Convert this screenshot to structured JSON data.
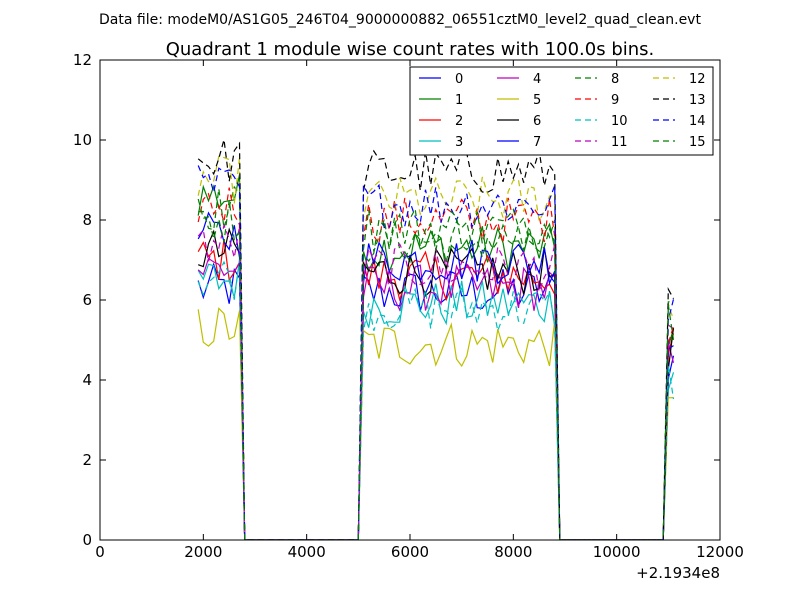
{
  "header": {
    "data_file": "Data file: modeM0/AS1G05_246T04_9000000882_06551cztM0_level2_quad_clean.evt",
    "title": "Quadrant 1 module wise count rates with 100.0s bins."
  },
  "axes": {
    "x_offset_label": "+2.1934e8",
    "x_ticks": [
      {
        "value": 0,
        "label": "0"
      },
      {
        "value": 2000,
        "label": "2000"
      },
      {
        "value": 4000,
        "label": "4000"
      },
      {
        "value": 6000,
        "label": "6000"
      },
      {
        "value": 8000,
        "label": "8000"
      },
      {
        "value": 10000,
        "label": "10000"
      },
      {
        "value": 12000,
        "label": "12000"
      }
    ],
    "y_ticks": [
      {
        "value": 0,
        "label": "0"
      },
      {
        "value": 2,
        "label": "2"
      },
      {
        "value": 4,
        "label": "4"
      },
      {
        "value": 6,
        "label": "6"
      },
      {
        "value": 8,
        "label": "8"
      },
      {
        "value": 10,
        "label": "10"
      },
      {
        "value": 12,
        "label": "12"
      }
    ]
  },
  "chart_data": {
    "type": "line",
    "title": "Quadrant 1 module wise count rates with 100.0s bins.",
    "xlabel": "",
    "ylabel": "",
    "x_offset": "+2.1934e8",
    "xlim": [
      0,
      12000
    ],
    "ylim": [
      0,
      12
    ],
    "grid": false,
    "legend_position": "top-right",
    "legend_columns": 4,
    "segments": [
      {
        "x_start": 1900,
        "x_end": 2700,
        "step": 100
      },
      {
        "x_start": 2800,
        "x_end": 5000,
        "step": 100
      },
      {
        "x_start": 5100,
        "x_end": 8800,
        "step": 100
      },
      {
        "x_start": 8900,
        "x_end": 10900,
        "step": 100
      },
      {
        "x_start": 11000,
        "x_end": 11100,
        "step": 100
      }
    ],
    "series": [
      {
        "name": "0",
        "color": "#0000ff",
        "dash": "solid",
        "levels": [
          6.3,
          0,
          6.2,
          0,
          4.5
        ]
      },
      {
        "name": "1",
        "color": "#008000",
        "dash": "solid",
        "levels": [
          8.6,
          0,
          7.3,
          0,
          5.2
        ]
      },
      {
        "name": "2",
        "color": "#ff0000",
        "dash": "solid",
        "levels": [
          7.0,
          0,
          6.6,
          0,
          4.6
        ]
      },
      {
        "name": "3",
        "color": "#00bfbf",
        "dash": "solid",
        "levels": [
          6.5,
          0,
          5.9,
          0,
          4.2
        ]
      },
      {
        "name": "4",
        "color": "#bf00bf",
        "dash": "solid",
        "levels": [
          6.8,
          0,
          6.3,
          0,
          4.4
        ]
      },
      {
        "name": "5",
        "color": "#bfbf00",
        "dash": "solid",
        "levels": [
          5.3,
          0,
          4.9,
          0,
          3.2
        ]
      },
      {
        "name": "6",
        "color": "#000000",
        "dash": "solid",
        "levels": [
          7.2,
          0,
          6.7,
          0,
          4.8
        ]
      },
      {
        "name": "7",
        "color": "#0000ff",
        "dash": "solid",
        "levels": [
          7.6,
          0,
          7.0,
          0,
          5.0
        ]
      },
      {
        "name": "8",
        "color": "#008000",
        "dash": "dashed",
        "levels": [
          8.3,
          0,
          7.5,
          0,
          5.4
        ]
      },
      {
        "name": "9",
        "color": "#ff0000",
        "dash": "dashed",
        "levels": [
          8.4,
          0,
          8.0,
          0,
          5.5
        ]
      },
      {
        "name": "10",
        "color": "#00bfbf",
        "dash": "dashed",
        "levels": [
          6.6,
          0,
          5.8,
          0,
          4.0
        ]
      },
      {
        "name": "11",
        "color": "#bf00bf",
        "dash": "dashed",
        "levels": [
          7.4,
          0,
          6.8,
          0,
          4.9
        ]
      },
      {
        "name": "12",
        "color": "#bfbf00",
        "dash": "dashed",
        "levels": [
          9.0,
          0,
          8.5,
          0,
          6.0
        ]
      },
      {
        "name": "13",
        "color": "#000000",
        "dash": "dashed",
        "levels": [
          9.5,
          0,
          9.2,
          0,
          6.6
        ]
      },
      {
        "name": "14",
        "color": "#0000ff",
        "dash": "dashed",
        "levels": [
          8.8,
          0,
          8.4,
          0,
          5.9
        ]
      },
      {
        "name": "15",
        "color": "#008000",
        "dash": "dashed",
        "levels": [
          8.0,
          0,
          7.8,
          0,
          5.6
        ]
      }
    ]
  }
}
